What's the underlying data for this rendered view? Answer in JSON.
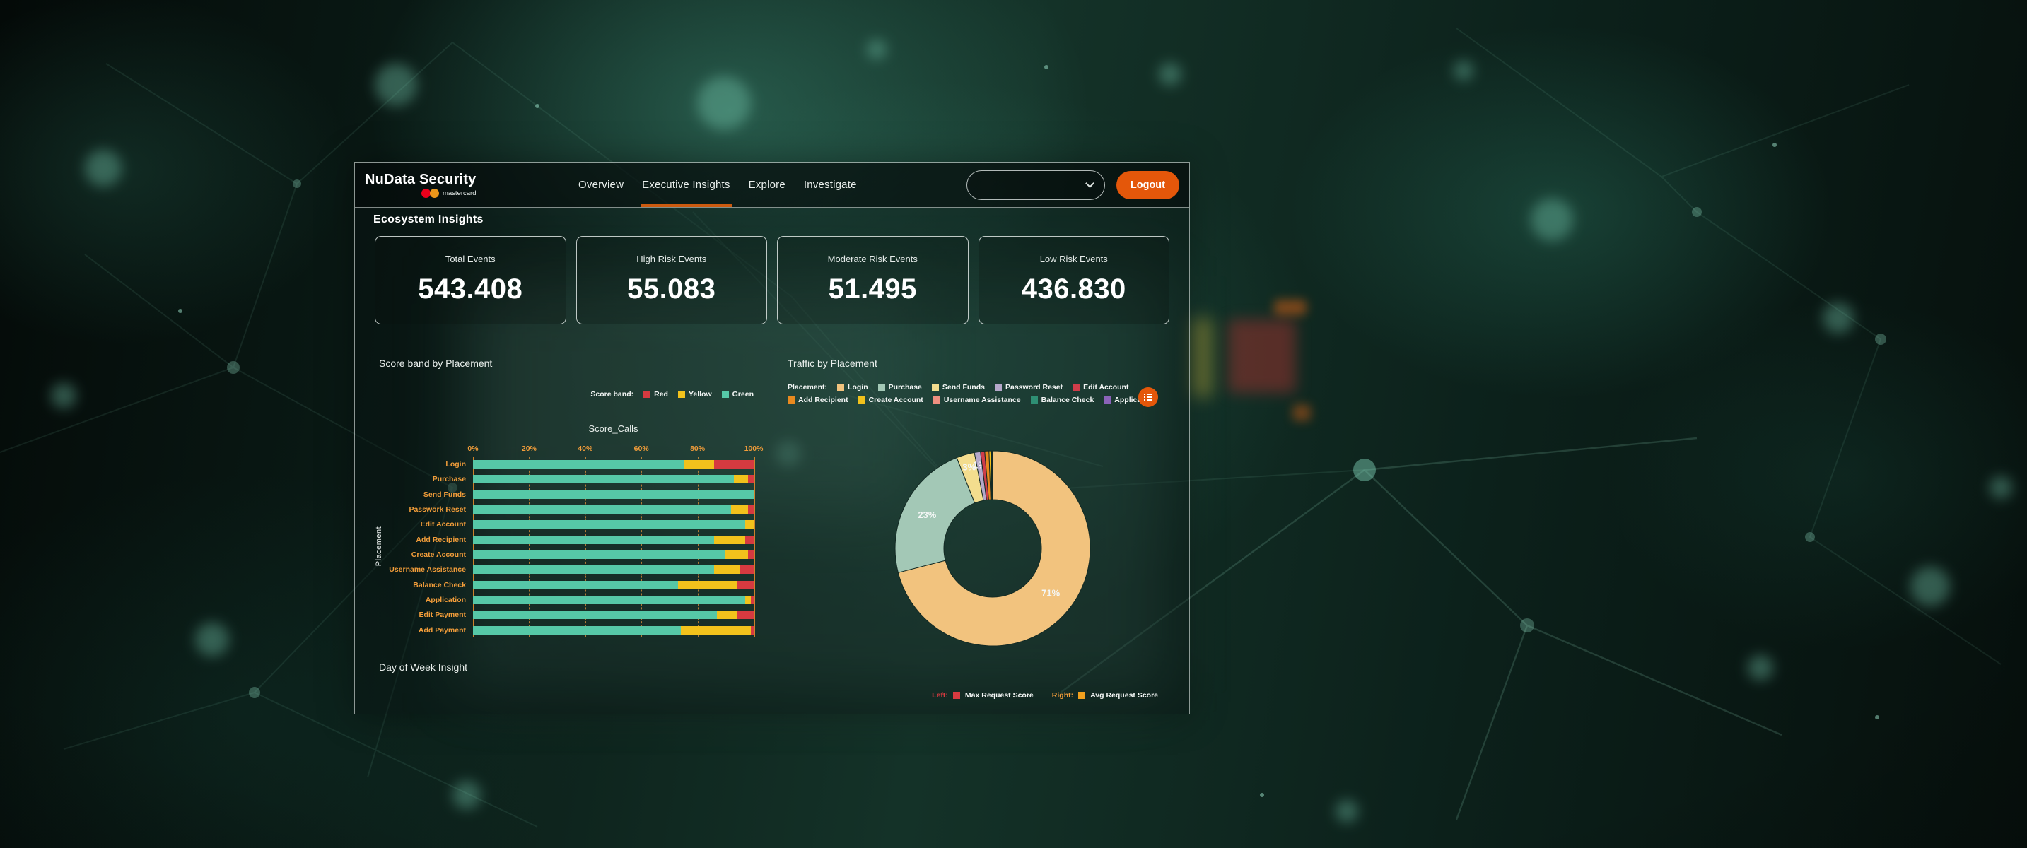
{
  "header": {
    "brand_title": "NuData Security",
    "brand_sub": "mastercard",
    "tabs": [
      {
        "label": "Overview",
        "active": false
      },
      {
        "label": "Executive Insights",
        "active": true
      },
      {
        "label": "Explore",
        "active": false
      },
      {
        "label": "Investigate",
        "active": false
      }
    ],
    "dropdown_value": "",
    "logout_label": "Logout",
    "accent_color": "#e4570a"
  },
  "ecosystem": {
    "title": "Ecosystem Insights",
    "kpis": [
      {
        "label": "Total Events",
        "value": "543.408"
      },
      {
        "label": "High Risk Events",
        "value": "55.083"
      },
      {
        "label": "Moderate Risk Events",
        "value": "51.495"
      },
      {
        "label": "Low Risk Events",
        "value": "436.830"
      }
    ]
  },
  "day_of_week": {
    "title": "Day of Week Insight"
  },
  "bottom_legend": {
    "left_prefix": "Left:",
    "left_label": "Max Request Score",
    "left_swatch": "#d63a40",
    "right_prefix": "Right:",
    "right_label": "Avg Request Score",
    "right_swatch": "#f0a01e"
  },
  "chart_data": [
    {
      "type": "bar",
      "orientation": "horizontal-stacked",
      "title": "Score band by Placement",
      "subtitle": "Score_Calls",
      "legend_label": "Score band:",
      "legend_position": "top-right",
      "legend": [
        {
          "name": "Red",
          "color": "#d63a40"
        },
        {
          "name": "Yellow",
          "color": "#f2c21c"
        },
        {
          "name": "Green",
          "color": "#56c8a7"
        }
      ],
      "ylabel": "Placement",
      "xlabel": "",
      "xlim": [
        0,
        100
      ],
      "x_ticks": [
        "0%",
        "20%",
        "40%",
        "60%",
        "80%",
        "100%"
      ],
      "grid": true,
      "categories": [
        "Login",
        "Purchase",
        "Send Funds",
        "Passwork Reset",
        "Edit Account",
        "Add Recipient",
        "Create Account",
        "Username Assistance",
        "Balance Check",
        "Application",
        "Edit Payment",
        "Add Payment"
      ],
      "series": [
        {
          "name": "Green",
          "color": "#56c8a7",
          "values": [
            75,
            93,
            100,
            92,
            97,
            86,
            90,
            86,
            73,
            97,
            87,
            74
          ]
        },
        {
          "name": "Yellow",
          "color": "#f2c21c",
          "values": [
            11,
            5,
            0,
            6,
            3,
            11,
            8,
            9,
            21,
            2,
            7,
            25
          ]
        },
        {
          "name": "Red",
          "color": "#d63a40",
          "values": [
            14,
            2,
            0,
            2,
            0,
            3,
            2,
            5,
            6,
            1,
            6,
            1
          ]
        }
      ]
    },
    {
      "type": "pie",
      "donut": true,
      "title": "Traffic by Placement",
      "legend_label": "Placement:",
      "legend_position": "top",
      "label_min_pct": 1,
      "slices": [
        {
          "name": "Login",
          "pct": 71,
          "color": "#f2c37e"
        },
        {
          "name": "Purchase",
          "pct": 23,
          "color": "#a3c8b6"
        },
        {
          "name": "Send Funds",
          "pct": 3,
          "color": "#f3dd8e"
        },
        {
          "name": "Password Reset",
          "pct": 1,
          "color": "#b5a8ca"
        },
        {
          "name": "Edit Account",
          "pct": 0.7,
          "color": "#cf3d4a"
        },
        {
          "name": "Add Recipient",
          "pct": 0.7,
          "color": "#e98a1f"
        },
        {
          "name": "Create Account",
          "pct": 0.3,
          "color": "#f2c21c"
        },
        {
          "name": "Username Assistance",
          "pct": 0.1,
          "color": "#ef8f80"
        },
        {
          "name": "Balance Check",
          "pct": 0.1,
          "color": "#2e8f74"
        },
        {
          "name": "Application",
          "pct": 0.1,
          "color": "#8a63b8"
        }
      ],
      "shown_labels": [
        "71%",
        "23%",
        "3%",
        "1%"
      ]
    }
  ]
}
